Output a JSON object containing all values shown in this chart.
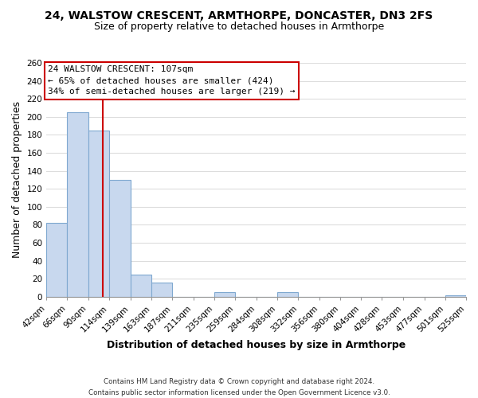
{
  "title": "24, WALSTOW CRESCENT, ARMTHORPE, DONCASTER, DN3 2FS",
  "subtitle": "Size of property relative to detached houses in Armthorpe",
  "xlabel": "Distribution of detached houses by size in Armthorpe",
  "ylabel": "Number of detached properties",
  "bar_left_edges": [
    42,
    66,
    90,
    114,
    139,
    163,
    187,
    211,
    235,
    259,
    284,
    308,
    332,
    356,
    380,
    404,
    428,
    453,
    477,
    501
  ],
  "bar_heights": [
    82,
    205,
    185,
    130,
    25,
    16,
    0,
    0,
    5,
    0,
    0,
    5,
    0,
    0,
    0,
    0,
    0,
    0,
    0,
    2
  ],
  "bar_widths": [
    24,
    24,
    24,
    25,
    24,
    24,
    24,
    24,
    24,
    25,
    24,
    24,
    24,
    24,
    24,
    24,
    25,
    24,
    24,
    24
  ],
  "tick_labels": [
    "42sqm",
    "66sqm",
    "90sqm",
    "114sqm",
    "139sqm",
    "163sqm",
    "187sqm",
    "211sqm",
    "235sqm",
    "259sqm",
    "284sqm",
    "308sqm",
    "332sqm",
    "356sqm",
    "380sqm",
    "404sqm",
    "428sqm",
    "453sqm",
    "477sqm",
    "501sqm",
    "525sqm"
  ],
  "bar_color": "#c8d8ee",
  "bar_edgecolor": "#7fa8d0",
  "vline_x": 107,
  "vline_color": "#cc0000",
  "annotation_title": "24 WALSTOW CRESCENT: 107sqm",
  "annotation_line1": "← 65% of detached houses are smaller (424)",
  "annotation_line2": "34% of semi-detached houses are larger (219) →",
  "annotation_box_facecolor": "#ffffff",
  "annotation_box_edgecolor": "#cc0000",
  "ylim": [
    0,
    260
  ],
  "yticks": [
    0,
    20,
    40,
    60,
    80,
    100,
    120,
    140,
    160,
    180,
    200,
    220,
    240,
    260
  ],
  "footer_line1": "Contains HM Land Registry data © Crown copyright and database right 2024.",
  "footer_line2": "Contains public sector information licensed under the Open Government Licence v3.0.",
  "bg_color": "#ffffff",
  "plot_bg_color": "#ffffff",
  "grid_color": "#dddddd",
  "title_fontsize": 10,
  "subtitle_fontsize": 9,
  "axis_label_fontsize": 9,
  "tick_fontsize": 7.5,
  "annotation_fontsize": 8
}
